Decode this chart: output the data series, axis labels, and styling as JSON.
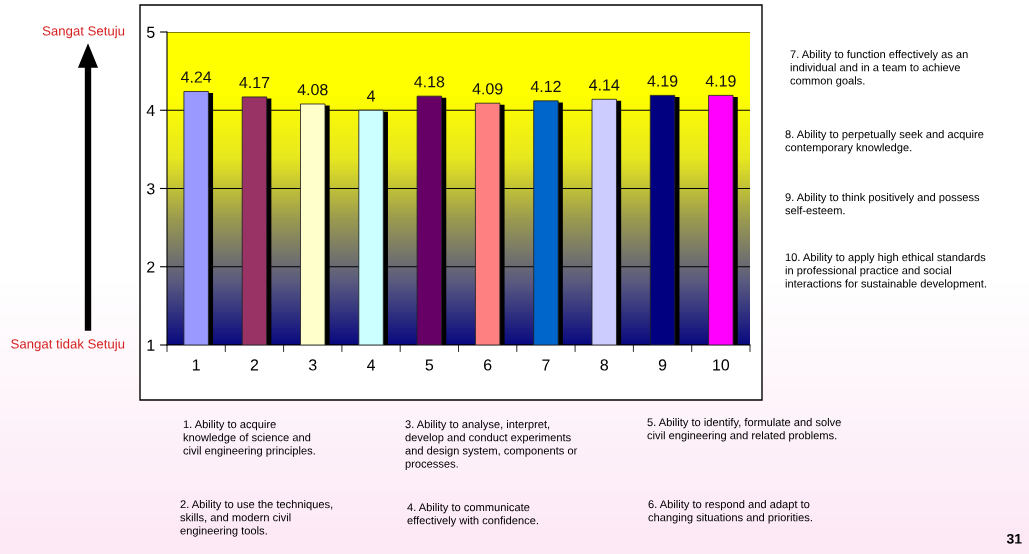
{
  "chart_data": {
    "type": "bar",
    "categories": [
      "1",
      "2",
      "3",
      "4",
      "5",
      "6",
      "7",
      "8",
      "9",
      "10"
    ],
    "values": [
      4.24,
      4.17,
      4.08,
      4,
      4.18,
      4.09,
      4.12,
      4.14,
      4.19,
      4.19
    ],
    "colors": [
      "#9999ff",
      "#993366",
      "#ffffcc",
      "#ccffff",
      "#660066",
      "#ff8080",
      "#0066cc",
      "#ccccff",
      "#000080",
      "#ff00ff"
    ],
    "ylim": [
      1,
      5
    ],
    "yticks": [
      1,
      2,
      3,
      4,
      5
    ],
    "grid": "y",
    "data_labels": true,
    "annotations": [
      "Sangat Setuju",
      "Sangat tidak Setuju",
      "1. Ability to acquire\nknowledge of science and\ncivil engineering principles.",
      "2. Ability to use the techniques,\nskills, and modern civil\nengineering tools.",
      "3. Ability to analyse, interpret,\ndevelop and conduct experiments\nand design system, components or\nprocesses.",
      "4. Ability to communicate\neffectively with confidence.",
      "5. Ability to identify, formulate and solve\ncivil engineering and related problems.",
      "6. Ability to respond and adapt to\nchanging situations and priorities.",
      "7. Ability to function effectively as an\nindividual and in a team to achieve\ncommon goals.",
      "8. Ability to perpetually seek and acquire\ncontemporary knowledge.",
      "9. Ability to think positively and possess\nself-esteem.",
      "10. Ability to apply high ethical standards\nin professional practice and social\ninteractions for sustainable development.",
      "31"
    ]
  }
}
